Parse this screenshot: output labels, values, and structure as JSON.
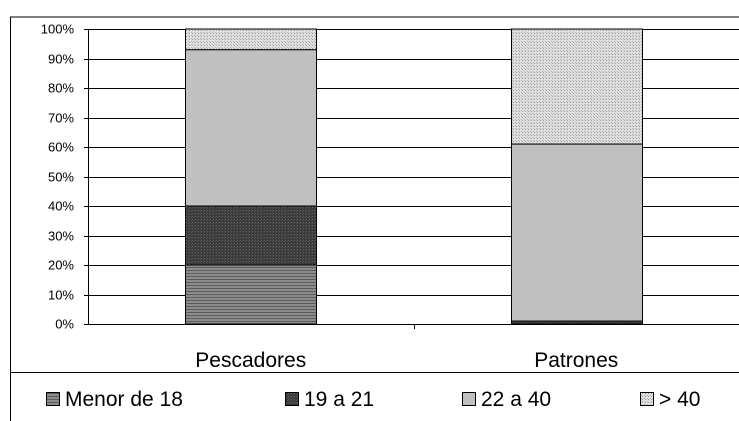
{
  "chart_data": {
    "type": "bar",
    "stacked": true,
    "percent": true,
    "categories": [
      "Pescadores",
      "Patrones"
    ],
    "series": [
      {
        "name": "Menor de 18",
        "values": [
          20,
          0
        ],
        "color": "#808080",
        "pattern": "horizontal-lines"
      },
      {
        "name": "19 a 21",
        "values": [
          20,
          1
        ],
        "color": "#404040",
        "pattern": "dense-dark"
      },
      {
        "name": "22 a 40",
        "values": [
          53,
          60
        ],
        "color": "#c0c0c0",
        "pattern": "solid"
      },
      {
        "name": "> 40",
        "values": [
          7,
          39
        ],
        "color": "#d8d8d8",
        "pattern": "dots"
      }
    ],
    "yticks": [
      "0%",
      "10%",
      "20%",
      "30%",
      "40%",
      "50%",
      "60%",
      "70%",
      "80%",
      "90%",
      "100%"
    ],
    "ylim": [
      0,
      100
    ],
    "grid": true,
    "legend_position": "bottom"
  }
}
